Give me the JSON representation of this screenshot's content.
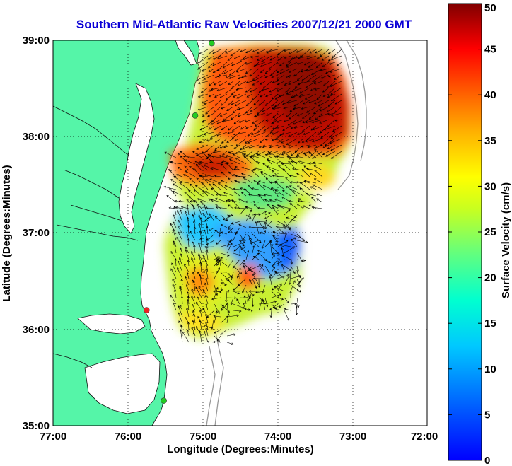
{
  "title": "Southern Mid-Atlantic Raw Velocities 2007/12/21 2000 GMT",
  "x_axis": {
    "label": "Longitude (Degrees:Minutes)",
    "ticks": [
      "77:00",
      "76:00",
      "75:00",
      "74:00",
      "73:00",
      "72:00"
    ]
  },
  "y_axis": {
    "label": "Latitude (Degrees:Minutes)",
    "ticks": [
      "39:00",
      "38:00",
      "37:00",
      "36:00",
      "35:00"
    ]
  },
  "colorbar": {
    "label": "Surface Velocity (cm/s)",
    "ticks": [
      "50",
      "45",
      "40",
      "35",
      "30",
      "25",
      "20",
      "15",
      "10",
      "5",
      "0"
    ],
    "min": 0,
    "max": 50
  },
  "map": {
    "lon_range": [
      -77,
      -72
    ],
    "lat_range": [
      35,
      39
    ],
    "land_color": "#55f5a8",
    "water_color": "#ffffff",
    "grid": "dotted",
    "stations": [
      {
        "lon": -74.88,
        "lat": 38.97,
        "color": "#22cc22"
      },
      {
        "lon": -75.1,
        "lat": 38.22,
        "color": "#22cc22"
      },
      {
        "lon": -75.75,
        "lat": 36.2,
        "color": "#ee2222"
      },
      {
        "lon": -75.52,
        "lat": 35.26,
        "color": "#22cc22"
      }
    ]
  }
}
